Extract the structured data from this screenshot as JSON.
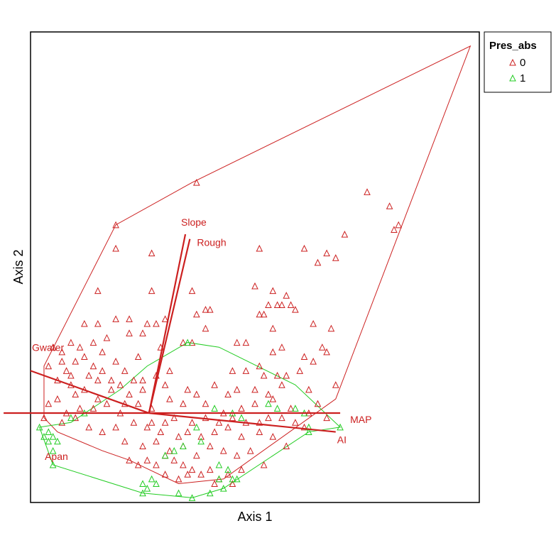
{
  "chart_data": {
    "type": "scatter",
    "title": "",
    "xlabel": "Axis 1",
    "ylabel": "Axis 2",
    "xlim": [
      0,
      100
    ],
    "ylim": [
      0,
      100
    ],
    "grid": false,
    "ticks": false,
    "legend": {
      "title": "Pres_abs",
      "placement": "right, outside plot top",
      "entries": [
        "0",
        "1"
      ]
    },
    "colors": {
      "group_0": "#cc2020",
      "group_1": "#22cc22",
      "vectors": "#cc2020"
    },
    "origin": [
      26.4,
      19.0
    ],
    "series": [
      {
        "name": "0",
        "marker": "triangle",
        "color": "#cc2020",
        "hull": [
          [
            3,
            18
          ],
          [
            3,
            29
          ],
          [
            19,
            59
          ],
          [
            36,
            68
          ],
          [
            98,
            97
          ],
          [
            68,
            22
          ],
          [
            43,
            5
          ],
          [
            33,
            4
          ],
          [
            22,
            9
          ],
          [
            16,
            11
          ],
          [
            6,
            15
          ]
        ],
        "points": [
          [
            37,
            68
          ],
          [
            19,
            59
          ],
          [
            19,
            54
          ],
          [
            27,
            53
          ],
          [
            51,
            54
          ],
          [
            61,
            54
          ],
          [
            66,
            53
          ],
          [
            68,
            52
          ],
          [
            64,
            51
          ],
          [
            70,
            57
          ],
          [
            75,
            66
          ],
          [
            80,
            63
          ],
          [
            81,
            58
          ],
          [
            82,
            59
          ],
          [
            15,
            45
          ],
          [
            27,
            45
          ],
          [
            36,
            45
          ],
          [
            50,
            46
          ],
          [
            54,
            45
          ],
          [
            57,
            44
          ],
          [
            53,
            42
          ],
          [
            56,
            42
          ],
          [
            58,
            42
          ],
          [
            39,
            41
          ],
          [
            40,
            41
          ],
          [
            37,
            40
          ],
          [
            51,
            40
          ],
          [
            52,
            40
          ],
          [
            55,
            42
          ],
          [
            59,
            41
          ],
          [
            12,
            38
          ],
          [
            15,
            38
          ],
          [
            19,
            39
          ],
          [
            22,
            39
          ],
          [
            26,
            38
          ],
          [
            28,
            38
          ],
          [
            30,
            39
          ],
          [
            39,
            37
          ],
          [
            54,
            37
          ],
          [
            63,
            38
          ],
          [
            67,
            37
          ],
          [
            9,
            34
          ],
          [
            14,
            34
          ],
          [
            17,
            35
          ],
          [
            22,
            36
          ],
          [
            25,
            36
          ],
          [
            29,
            33
          ],
          [
            34,
            34
          ],
          [
            36,
            34
          ],
          [
            46,
            34
          ],
          [
            48,
            34
          ],
          [
            54,
            32
          ],
          [
            56,
            33
          ],
          [
            61,
            31
          ],
          [
            65,
            33
          ],
          [
            4,
            29
          ],
          [
            7,
            30
          ],
          [
            10,
            30
          ],
          [
            12,
            31
          ],
          [
            14,
            29
          ],
          [
            16,
            32
          ],
          [
            19,
            30
          ],
          [
            21,
            28
          ],
          [
            24,
            31
          ],
          [
            28,
            27
          ],
          [
            31,
            28
          ],
          [
            45,
            28
          ],
          [
            48,
            28
          ],
          [
            51,
            29
          ],
          [
            52,
            27
          ],
          [
            55,
            27
          ],
          [
            57,
            27
          ],
          [
            60,
            28
          ],
          [
            63,
            30
          ],
          [
            66,
            32
          ],
          [
            6,
            26
          ],
          [
            9,
            27
          ],
          [
            12,
            24
          ],
          [
            15,
            26
          ],
          [
            18,
            24
          ],
          [
            22,
            23
          ],
          [
            25,
            26
          ],
          [
            30,
            25
          ],
          [
            35,
            24
          ],
          [
            37,
            23
          ],
          [
            41,
            25
          ],
          [
            44,
            23
          ],
          [
            46,
            24
          ],
          [
            50,
            24
          ],
          [
            53,
            23
          ],
          [
            56,
            25
          ],
          [
            62,
            24
          ],
          [
            68,
            25
          ],
          [
            4,
            21
          ],
          [
            6,
            22
          ],
          [
            8,
            19
          ],
          [
            11,
            20
          ],
          [
            14,
            20
          ],
          [
            17,
            21
          ],
          [
            20,
            19
          ],
          [
            24,
            21
          ],
          [
            27,
            20
          ],
          [
            31,
            22
          ],
          [
            34,
            21
          ],
          [
            39,
            21
          ],
          [
            43,
            19
          ],
          [
            47,
            20
          ],
          [
            50,
            21
          ],
          [
            54,
            22
          ],
          [
            58,
            20
          ],
          [
            62,
            19
          ],
          [
            66,
            18
          ],
          [
            3,
            18
          ],
          [
            7,
            17
          ],
          [
            10,
            18
          ],
          [
            13,
            16
          ],
          [
            16,
            15
          ],
          [
            19,
            16
          ],
          [
            23,
            17
          ],
          [
            26,
            16
          ],
          [
            29,
            15
          ],
          [
            32,
            18
          ],
          [
            36,
            17
          ],
          [
            41,
            15
          ],
          [
            44,
            16
          ],
          [
            47,
            14
          ],
          [
            51,
            15
          ],
          [
            54,
            14
          ],
          [
            57,
            12
          ],
          [
            21,
            13
          ],
          [
            25,
            12
          ],
          [
            28,
            13
          ],
          [
            31,
            11
          ],
          [
            34,
            12
          ],
          [
            37,
            10
          ],
          [
            40,
            12
          ],
          [
            43,
            11
          ],
          [
            46,
            10
          ],
          [
            49,
            11
          ],
          [
            52,
            8
          ],
          [
            22,
            9
          ],
          [
            24,
            8
          ],
          [
            26,
            9
          ],
          [
            28,
            8
          ],
          [
            30,
            10
          ],
          [
            32,
            9
          ],
          [
            34,
            8
          ],
          [
            36,
            7
          ],
          [
            38,
            6
          ],
          [
            40,
            7
          ],
          [
            42,
            5
          ],
          [
            44,
            6
          ],
          [
            47,
            7
          ],
          [
            30,
            6
          ],
          [
            33,
            5
          ],
          [
            35,
            6
          ],
          [
            41,
            4
          ],
          [
            45,
            4
          ],
          [
            5,
            33
          ],
          [
            7,
            32
          ],
          [
            8,
            28
          ],
          [
            9,
            25
          ],
          [
            10,
            23
          ],
          [
            11,
            33
          ],
          [
            13,
            27
          ],
          [
            15,
            22
          ],
          [
            16,
            28
          ],
          [
            18,
            26
          ],
          [
            20,
            25
          ],
          [
            21,
            21
          ],
          [
            23,
            26
          ],
          [
            25,
            24
          ],
          [
            27,
            17
          ],
          [
            30,
            17
          ],
          [
            33,
            14
          ],
          [
            35,
            15
          ],
          [
            38,
            14
          ],
          [
            39,
            18
          ],
          [
            42,
            17
          ],
          [
            45,
            18
          ],
          [
            48,
            17
          ],
          [
            51,
            17
          ],
          [
            53,
            18
          ],
          [
            56,
            18
          ],
          [
            59,
            17
          ],
          [
            61,
            16
          ],
          [
            64,
            21
          ]
        ]
      },
      {
        "name": "1",
        "marker": "triangle",
        "color": "#22cc22",
        "hull": [
          [
            2,
            16
          ],
          [
            5,
            8
          ],
          [
            25,
            2
          ],
          [
            36,
            1
          ],
          [
            43,
            3
          ],
          [
            62,
            15
          ],
          [
            69,
            16
          ],
          [
            59,
            25
          ],
          [
            42,
            33
          ],
          [
            35,
            34
          ],
          [
            26,
            29
          ],
          [
            20,
            24
          ],
          [
            9,
            17
          ]
        ],
        "points": [
          [
            35,
            34
          ],
          [
            2,
            16
          ],
          [
            3,
            14
          ],
          [
            4,
            13
          ],
          [
            4,
            15
          ],
          [
            5,
            14
          ],
          [
            6,
            13
          ],
          [
            5,
            11
          ],
          [
            9,
            18
          ],
          [
            12,
            19
          ],
          [
            5,
            8
          ],
          [
            25,
            4
          ],
          [
            25,
            2
          ],
          [
            26,
            3
          ],
          [
            27,
            5
          ],
          [
            28,
            4
          ],
          [
            33,
            2
          ],
          [
            36,
            1
          ],
          [
            40,
            2
          ],
          [
            43,
            3
          ],
          [
            42,
            5
          ],
          [
            45,
            5
          ],
          [
            46,
            5
          ],
          [
            42,
            8
          ],
          [
            44,
            7
          ],
          [
            53,
            21
          ],
          [
            55,
            20
          ],
          [
            59,
            20
          ],
          [
            61,
            19
          ],
          [
            62,
            16
          ],
          [
            62,
            15
          ],
          [
            69,
            16
          ],
          [
            41,
            20
          ],
          [
            45,
            19
          ],
          [
            47,
            18
          ],
          [
            30,
            10
          ],
          [
            32,
            11
          ],
          [
            34,
            12
          ],
          [
            38,
            13
          ],
          [
            37,
            16
          ]
        ]
      }
    ],
    "vectors": [
      {
        "label": "MAP",
        "tip": [
          69,
          19
        ]
      },
      {
        "label": "AI",
        "tip": [
          68,
          15
        ]
      },
      {
        "label": "Slope",
        "tip": [
          34.5,
          57
        ]
      },
      {
        "label": "Rough",
        "tip": [
          35.5,
          56
        ]
      },
      {
        "label": "Gwater",
        "tip": [
          0,
          28
        ]
      },
      {
        "label": "Apan",
        "tip": [
          -6,
          19
        ]
      }
    ]
  }
}
